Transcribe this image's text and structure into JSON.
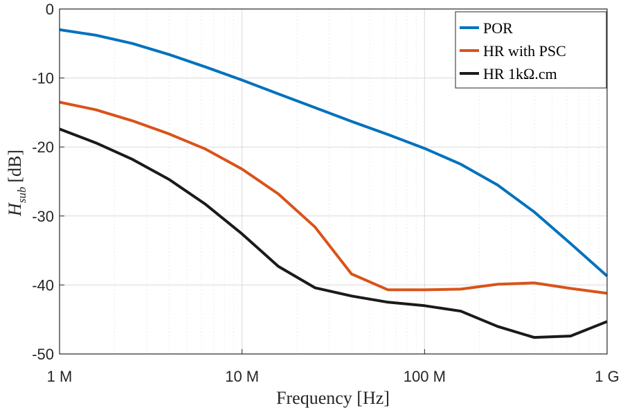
{
  "chart_data": {
    "type": "line",
    "title": "",
    "xscale": "log",
    "xlabel": "Frequency [Hz]",
    "ylabel_main": "H",
    "ylabel_sub": "sub",
    "ylabel_unit": "[dB]",
    "xlim": [
      1000000,
      1000000000
    ],
    "ylim": [
      -50,
      0
    ],
    "grid": true,
    "x_ticks": [
      {
        "value": 1000000,
        "label": "1 M"
      },
      {
        "value": 10000000,
        "label": "10 M"
      },
      {
        "value": 100000000,
        "label": "100 M"
      },
      {
        "value": 1000000000,
        "label": "1 G"
      }
    ],
    "y_ticks": [
      {
        "value": 0,
        "label": "0"
      },
      {
        "value": -10,
        "label": "-10"
      },
      {
        "value": -20,
        "label": "-20"
      },
      {
        "value": -30,
        "label": "-30"
      },
      {
        "value": -40,
        "label": "-40"
      },
      {
        "value": -50,
        "label": "-50"
      }
    ],
    "legend_position": "top-right",
    "x": [
      1000000,
      1580000,
      2510000,
      3980000,
      6310000,
      10000000,
      15800000,
      25100000,
      39800000,
      63100000,
      100000000,
      158000000,
      251000000,
      398000000,
      631000000,
      1000000000
    ],
    "series": [
      {
        "name": "POR",
        "color": "#0072BD",
        "values": [
          -3.0,
          -3.8,
          -5.0,
          -6.6,
          -8.4,
          -10.3,
          -12.3,
          -14.3,
          -16.3,
          -18.2,
          -20.2,
          -22.5,
          -25.5,
          -29.4,
          -34.0,
          -38.7
        ]
      },
      {
        "name": "HR with PSC",
        "color": "#D95319",
        "values": [
          -13.5,
          -14.6,
          -16.2,
          -18.1,
          -20.3,
          -23.2,
          -26.8,
          -31.6,
          -38.4,
          -40.7,
          -40.7,
          -40.6,
          -39.9,
          -39.7,
          -40.5,
          -41.2
        ]
      },
      {
        "name": "HR 1kΩ.cm",
        "color": "#1a1a1a",
        "values": [
          -17.4,
          -19.4,
          -21.8,
          -24.7,
          -28.3,
          -32.6,
          -37.3,
          -40.4,
          -41.6,
          -42.5,
          -43.0,
          -43.8,
          -46.0,
          -47.6,
          -47.4,
          -45.3
        ]
      }
    ]
  }
}
